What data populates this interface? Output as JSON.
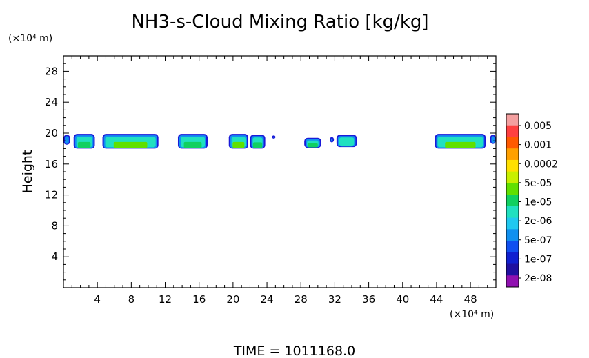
{
  "chart_data": {
    "type": "heatmap",
    "title": "NH3-s-Cloud Mixing Ratio [kg/kg]",
    "ylabel": "Height",
    "x_unit": "(×10⁴ m)",
    "y_unit": "(×10⁴ m)",
    "xlim": [
      0,
      51
    ],
    "ylim": [
      0,
      30
    ],
    "x_ticks": [
      "4",
      "8",
      "12",
      "16",
      "20",
      "24",
      "28",
      "32",
      "36",
      "40",
      "44",
      "48"
    ],
    "y_ticks": [
      "4",
      "8",
      "12",
      "16",
      "20",
      "24",
      "28"
    ],
    "colorbar": {
      "labels": [
        "0.005",
        "0.001",
        "0.0002",
        "5e-05",
        "1e-05",
        "2e-06",
        "5e-07",
        "1e-07",
        "2e-08"
      ],
      "colors": [
        "#f4a0a0",
        "#ff4040",
        "#ff5a00",
        "#ffa000",
        "#ffe000",
        "#c8f000",
        "#60e000",
        "#10d060",
        "#20e0c0",
        "#20c8f0",
        "#1090f0",
        "#1050f0",
        "#1020d0",
        "#2010a0",
        "#9010b0"
      ]
    },
    "patches": [
      {
        "x0": 0.0,
        "x1": 0.8,
        "y_low": 18.5,
        "y_high": 19.8,
        "core": "#20c8f0"
      },
      {
        "x0": 1.2,
        "x1": 3.7,
        "y_low": 18.0,
        "y_high": 19.9,
        "core": "#10d060"
      },
      {
        "x0": 4.6,
        "x1": 11.2,
        "y_low": 18.0,
        "y_high": 19.9,
        "core": "#60e000"
      },
      {
        "x0": 13.5,
        "x1": 17.0,
        "y_low": 18.0,
        "y_high": 19.9,
        "core": "#10d060"
      },
      {
        "x0": 19.5,
        "x1": 21.8,
        "y_low": 18.0,
        "y_high": 19.9,
        "core": "#60e000"
      },
      {
        "x0": 22.0,
        "x1": 23.8,
        "y_low": 18.0,
        "y_high": 19.8,
        "core": "#10d060"
      },
      {
        "x0": 24.6,
        "x1": 25.0,
        "y_low": 19.3,
        "y_high": 19.7,
        "core": "#1020d0"
      },
      {
        "x0": 28.4,
        "x1": 30.4,
        "y_low": 18.1,
        "y_high": 19.4,
        "core": "#10d060"
      },
      {
        "x0": 31.4,
        "x1": 31.9,
        "y_low": 18.8,
        "y_high": 19.5,
        "core": "#1050f0"
      },
      {
        "x0": 32.2,
        "x1": 34.6,
        "y_low": 18.2,
        "y_high": 19.8,
        "core": "#20e0c0"
      },
      {
        "x0": 43.8,
        "x1": 49.8,
        "y_low": 18.0,
        "y_high": 19.9,
        "core": "#60e000"
      },
      {
        "x0": 50.3,
        "x1": 51.0,
        "y_low": 18.6,
        "y_high": 19.8,
        "core": "#20c8f0"
      }
    ]
  },
  "footer": {
    "time_label": "TIME = 1011168.0"
  }
}
